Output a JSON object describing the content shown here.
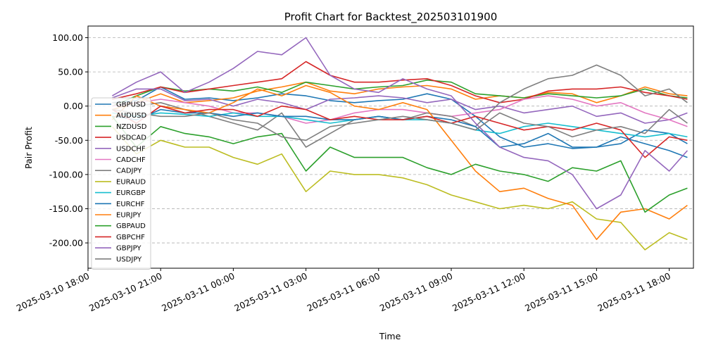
{
  "chart_data": {
    "type": "line",
    "title": "Profit Chart for Backtest_202503101900",
    "xlabel": "Time",
    "ylabel": "Pair Profit",
    "xlim": [
      "2025-03-10 18:00",
      "2025-03-11 19:00"
    ],
    "ylim": [
      -237,
      117
    ],
    "grid": "y-dashed",
    "legend_position": "left-center",
    "x_ticks": [
      "2025-03-10 18:00",
      "2025-03-10 21:00",
      "2025-03-11 00:00",
      "2025-03-11 03:00",
      "2025-03-11 06:00",
      "2025-03-11 09:00",
      "2025-03-11 12:00",
      "2025-03-11 15:00",
      "2025-03-11 18:00"
    ],
    "y_ticks": [
      "100.00",
      "50.00",
      "0.00",
      "-50.00",
      "-100.00",
      "-150.00",
      "-200.00"
    ],
    "x_times": [
      "2025-03-10 19:00",
      "2025-03-10 20:00",
      "2025-03-10 21:00",
      "2025-03-10 22:00",
      "2025-03-10 23:00",
      "2025-03-11 00:00",
      "2025-03-11 01:00",
      "2025-03-11 02:00",
      "2025-03-11 03:00",
      "2025-03-11 04:00",
      "2025-03-11 05:00",
      "2025-03-11 06:00",
      "2025-03-11 07:00",
      "2025-03-11 08:00",
      "2025-03-11 09:00",
      "2025-03-11 10:00",
      "2025-03-11 11:00",
      "2025-03-11 12:00",
      "2025-03-11 13:00",
      "2025-03-11 14:00",
      "2025-03-11 15:00",
      "2025-03-11 16:00",
      "2025-03-11 17:00",
      "2025-03-11 18:00",
      "2025-03-11 18:45"
    ],
    "series": [
      {
        "name": "GBPUSD",
        "color": "#1f77b4",
        "values": [
          5,
          8,
          28,
          10,
          12,
          8,
          12,
          18,
          15,
          8,
          5,
          8,
          10,
          18,
          10,
          -15,
          -45,
          -60,
          -55,
          -62,
          -60,
          -55,
          -35,
          -40,
          -55
        ]
      },
      {
        "name": "AUDUSD",
        "color": "#ff7f0e",
        "values": [
          -5,
          5,
          18,
          5,
          8,
          12,
          22,
          28,
          35,
          22,
          18,
          25,
          28,
          30,
          25,
          10,
          15,
          12,
          20,
          18,
          5,
          15,
          28,
          18,
          15
        ]
      },
      {
        "name": "NZDUSD",
        "color": "#2ca02c",
        "values": [
          0,
          15,
          28,
          22,
          25,
          22,
          28,
          20,
          35,
          30,
          25,
          28,
          30,
          38,
          35,
          18,
          15,
          12,
          18,
          15,
          12,
          15,
          25,
          15,
          12
        ]
      },
      {
        "name": "USDCAD",
        "color": "#d62728",
        "values": [
          10,
          18,
          28,
          20,
          25,
          30,
          35,
          40,
          65,
          45,
          35,
          35,
          38,
          40,
          30,
          15,
          5,
          10,
          22,
          25,
          25,
          28,
          20,
          15,
          10
        ]
      },
      {
        "name": "USDCHF",
        "color": "#9467bd",
        "values": [
          12,
          25,
          25,
          8,
          10,
          0,
          10,
          5,
          -5,
          10,
          12,
          15,
          12,
          5,
          10,
          -5,
          0,
          -10,
          -5,
          0,
          -15,
          -10,
          -25,
          -20,
          -10
        ]
      },
      {
        "name": "CADCHF",
        "color": "#e377c2",
        "values": [
          0,
          5,
          10,
          5,
          0,
          -10,
          -10,
          -15,
          -25,
          -20,
          -10,
          -5,
          -5,
          -10,
          -15,
          -10,
          -5,
          10,
          15,
          10,
          0,
          5,
          -10,
          -20,
          -30
        ]
      },
      {
        "name": "CADJPY",
        "color": "#7f7f7f",
        "values": [
          5,
          0,
          5,
          -5,
          -15,
          -25,
          -35,
          -10,
          -60,
          -40,
          -20,
          -15,
          -20,
          -10,
          -15,
          -30,
          5,
          25,
          40,
          45,
          60,
          45,
          15,
          25,
          5
        ]
      },
      {
        "name": "EURAUD",
        "color": "#bcbd22",
        "values": [
          -30,
          -70,
          -50,
          -60,
          -60,
          -75,
          -85,
          -70,
          -125,
          -95,
          -100,
          -100,
          -105,
          -115,
          -130,
          -140,
          -150,
          -145,
          -150,
          -140,
          -165,
          -170,
          -210,
          -185,
          -195
        ]
      },
      {
        "name": "EURGBP",
        "color": "#17becf",
        "values": [
          -10,
          -15,
          -10,
          -12,
          -15,
          -10,
          -15,
          -15,
          -20,
          -25,
          -20,
          -15,
          -20,
          -20,
          -25,
          -35,
          -40,
          -30,
          -25,
          -30,
          -35,
          -40,
          -45,
          -40,
          -45
        ]
      },
      {
        "name": "EURCHF",
        "color": "#1f77b4",
        "values": [
          -15,
          -20,
          -5,
          -10,
          -10,
          -15,
          -10,
          -15,
          -15,
          -20,
          -20,
          -15,
          -20,
          -15,
          -20,
          -30,
          -60,
          -55,
          -40,
          -60,
          -60,
          -45,
          -55,
          -65,
          -75
        ]
      },
      {
        "name": "EURJPY",
        "color": "#ff7f0e",
        "values": [
          -20,
          15,
          0,
          -5,
          -10,
          5,
          25,
          15,
          30,
          20,
          0,
          -5,
          5,
          -5,
          -50,
          -95,
          -125,
          -120,
          -135,
          -145,
          -195,
          -155,
          -150,
          -165,
          -145
        ]
      },
      {
        "name": "GBPAUD",
        "color": "#2ca02c",
        "values": [
          -15,
          -60,
          -30,
          -40,
          -45,
          -55,
          -45,
          -40,
          -95,
          -60,
          -75,
          -75,
          -75,
          -90,
          -100,
          -85,
          -95,
          -100,
          -110,
          -90,
          -95,
          -80,
          -155,
          -130,
          -120
        ]
      },
      {
        "name": "GBPCHF",
        "color": "#d62728",
        "values": [
          -5,
          -25,
          0,
          -10,
          -5,
          -5,
          -15,
          0,
          -5,
          -20,
          -15,
          -20,
          -20,
          -15,
          -25,
          -15,
          -25,
          -35,
          -30,
          -35,
          -25,
          -35,
          -75,
          -45,
          -50
        ]
      },
      {
        "name": "GBPJPY",
        "color": "#9467bd",
        "values": [
          15,
          35,
          50,
          20,
          35,
          55,
          80,
          75,
          100,
          45,
          25,
          20,
          40,
          25,
          15,
          -25,
          -60,
          -75,
          -80,
          -100,
          -150,
          -130,
          -65,
          -95,
          -65
        ]
      },
      {
        "name": "USDJPY",
        "color": "#7f7f7f",
        "values": [
          -5,
          -10,
          -15,
          -15,
          -10,
          -20,
          -25,
          -45,
          -50,
          -30,
          -25,
          -20,
          -15,
          -20,
          -25,
          -35,
          -10,
          -25,
          -30,
          -45,
          -35,
          -30,
          -40,
          -5,
          -25
        ]
      }
    ]
  }
}
